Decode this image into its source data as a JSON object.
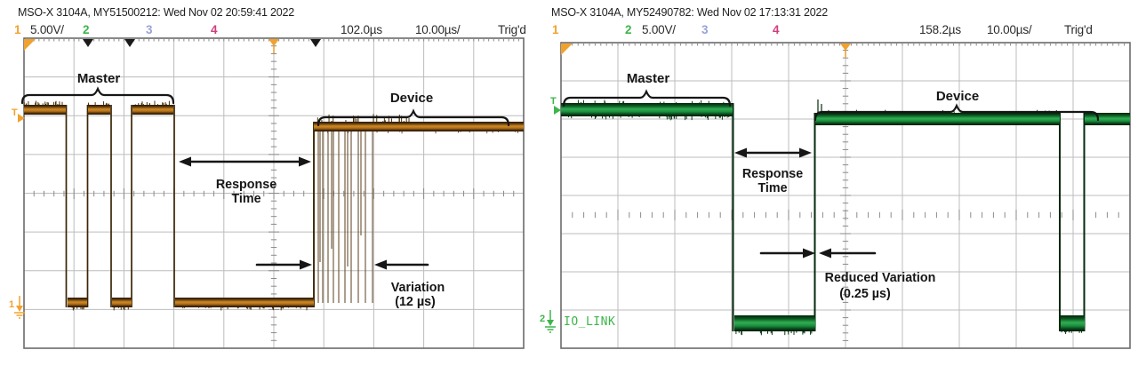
{
  "left": {
    "title": "MSO-X 3104A, MY51500212: Wed Nov 02 20:59:41 2022",
    "channel_bar": {
      "ch1": "1",
      "ch1_scale": "5.00V/",
      "ch2": "2",
      "ch3": "3",
      "ch4": "4",
      "delay": "102.0µs",
      "timebase": "10.00µs/",
      "trig_status": "Trig'd"
    },
    "labels": {
      "master": "Master",
      "device": "Device",
      "response1": "Response",
      "response2": "Time",
      "variation1": "Variation",
      "variation2": "(12 µs)"
    },
    "markers": {
      "trigger": "T",
      "ground": "1"
    }
  },
  "right": {
    "title": "MSO-X 3104A, MY52490782: Wed Nov 02 17:13:31 2022",
    "channel_bar": {
      "ch1": "1",
      "ch2": "2",
      "ch2_scale": "5.00V/",
      "ch3": "3",
      "ch4": "4",
      "delay": "158.2µs",
      "timebase": "10.00µs/",
      "trig_status": "Trig'd"
    },
    "labels": {
      "master": "Master",
      "device": "Device",
      "response1": "Response",
      "response2": "Time",
      "variation1": "Reduced Variation",
      "variation2": "(0.25 µs)",
      "bus": "IO_LINK"
    },
    "markers": {
      "trigger": "T",
      "ground": "2"
    }
  },
  "colors": {
    "ch1_orange": "#F0A22E",
    "ch2_green": "#3CB54A",
    "ch3_blue": "#98A2D8",
    "ch4_magenta": "#CF3F7D",
    "waveform_orange": "#B06F15",
    "waveform_green": "#1E8F3C",
    "grid": "#BCBCBC",
    "border": "#6B6B6B",
    "annotation": "#161616"
  }
}
